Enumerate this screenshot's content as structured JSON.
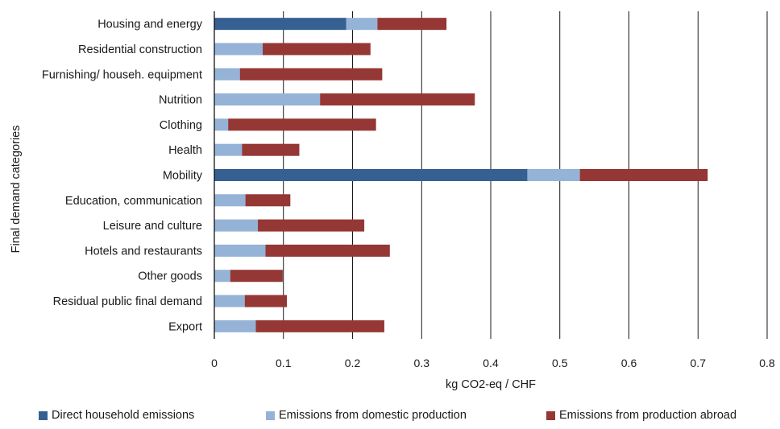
{
  "chart_data": {
    "type": "bar",
    "orientation": "horizontal",
    "stacked": true,
    "title": "",
    "xlabel": "kg CO2-eq / CHF",
    "ylabel": "Final demand categories",
    "xlim": [
      0,
      0.8
    ],
    "xticks": [
      "0",
      "0.1",
      "0.2",
      "0.3",
      "0.4",
      "0.5",
      "0.6",
      "0.7",
      "0.8"
    ],
    "grid": "vertical",
    "legend_position": "bottom",
    "categories": [
      "Housing and energy",
      "Residential construction",
      "Furnishing/ househ. equipment",
      "Nutrition",
      "Clothing",
      "Health",
      "Mobility",
      "Education, communication",
      "Leisure and culture",
      "Hotels and restaurants",
      "Other goods",
      "Residual public final demand",
      "Export"
    ],
    "series": [
      {
        "name": "Direct household emissions",
        "color": "#366092",
        "values": [
          0.191,
          0,
          0,
          0,
          0,
          0,
          0.453,
          0,
          0,
          0,
          0,
          0,
          0
        ]
      },
      {
        "name": "Emissions from domestic production",
        "color": "#95b3d7",
        "values": [
          0.045,
          0.07,
          0.037,
          0.153,
          0.02,
          0.04,
          0.076,
          0.045,
          0.063,
          0.074,
          0.023,
          0.044,
          0.06
        ]
      },
      {
        "name": "Emissions from production abroad",
        "color": "#953735",
        "values": [
          0.1,
          0.156,
          0.206,
          0.224,
          0.214,
          0.083,
          0.185,
          0.065,
          0.154,
          0.18,
          0.076,
          0.061,
          0.186
        ]
      }
    ]
  }
}
